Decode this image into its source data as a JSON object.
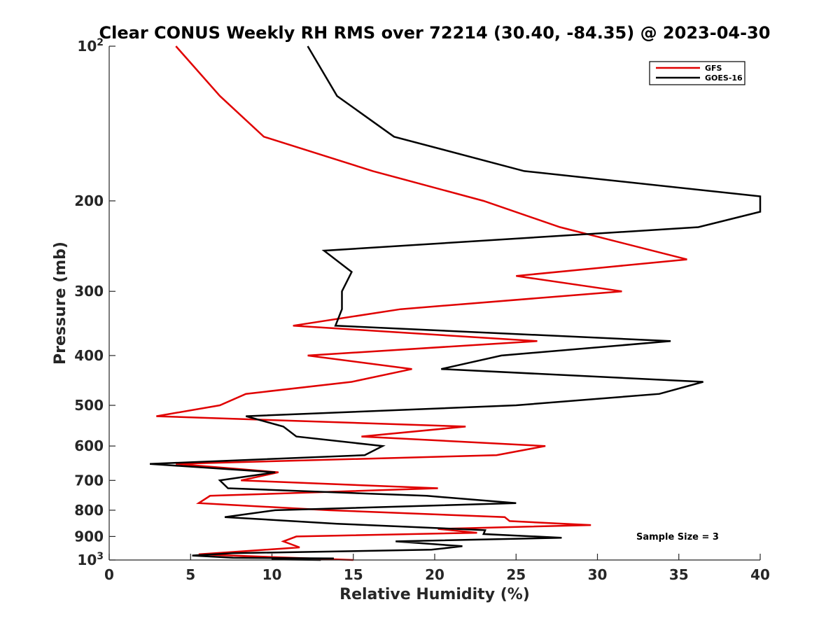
{
  "chart_data": {
    "type": "line",
    "title": "Clear CONUS Weekly RH RMS over 72214 (30.40, -84.35) @ 2023-04-30",
    "xlabel": "Relative Humidity (%)",
    "ylabel": "Pressure (mb)",
    "xlim": [
      0,
      40
    ],
    "ylim": [
      100,
      1000
    ],
    "yscale": "log",
    "yreversed": true,
    "x_ticks": [
      {
        "value": 0,
        "label": "0"
      },
      {
        "value": 5,
        "label": "5"
      },
      {
        "value": 10,
        "label": "10"
      },
      {
        "value": 15,
        "label": "15"
      },
      {
        "value": 20,
        "label": "20"
      },
      {
        "value": 25,
        "label": "25"
      },
      {
        "value": 30,
        "label": "30"
      },
      {
        "value": 35,
        "label": "35"
      },
      {
        "value": 40,
        "label": "40"
      }
    ],
    "y_ticks": [
      {
        "value": 100,
        "base": "10",
        "exp": "2"
      },
      {
        "value": 200,
        "label": "200"
      },
      {
        "value": 300,
        "label": "300"
      },
      {
        "value": 400,
        "label": "400"
      },
      {
        "value": 500,
        "label": "500"
      },
      {
        "value": 600,
        "label": "600"
      },
      {
        "value": 700,
        "label": "700"
      },
      {
        "value": 800,
        "label": "800"
      },
      {
        "value": 900,
        "label": "900"
      },
      {
        "value": 1000,
        "base": "10",
        "exp": "3"
      }
    ],
    "legend_position": "top-right",
    "series": [
      {
        "name": "GFS",
        "color": "#e00000",
        "points": [
          [
            4.1,
            100
          ],
          [
            6.8,
            125
          ],
          [
            9.5,
            150
          ],
          [
            16.2,
            175
          ],
          [
            23,
            200
          ],
          [
            27.7,
            225
          ],
          [
            35.5,
            260
          ],
          [
            25,
            280
          ],
          [
            31.5,
            300
          ],
          [
            17.9,
            325
          ],
          [
            11.3,
            350
          ],
          [
            26.3,
            375
          ],
          [
            12.2,
            400
          ],
          [
            18.6,
            425
          ],
          [
            14.9,
            450
          ],
          [
            8.4,
            475
          ],
          [
            6.8,
            500
          ],
          [
            2.9,
            525
          ],
          [
            21.9,
            550
          ],
          [
            15.5,
            575
          ],
          [
            26.8,
            600
          ],
          [
            23.8,
            625
          ],
          [
            4.1,
            650
          ],
          [
            10.4,
            675
          ],
          [
            8.1,
            700
          ],
          [
            20.2,
            725
          ],
          [
            6.2,
            750
          ],
          [
            5.5,
            775
          ],
          [
            13.5,
            800
          ],
          [
            24.3,
            825
          ],
          [
            24.6,
            840
          ],
          [
            29.6,
            855
          ],
          [
            20.2,
            870
          ],
          [
            22.6,
            885
          ],
          [
            11.5,
            900
          ],
          [
            10.7,
            920
          ],
          [
            11.7,
            945
          ],
          [
            5.5,
            975
          ],
          [
            15,
            1000
          ]
        ]
      },
      {
        "name": "GOES-16",
        "color": "#000000",
        "points": [
          [
            12.2,
            100
          ],
          [
            14,
            125
          ],
          [
            17.5,
            150
          ],
          [
            25.5,
            175
          ],
          [
            40,
            196
          ],
          [
            40,
            210
          ],
          [
            36.2,
            225
          ],
          [
            13.2,
            250
          ],
          [
            14.9,
            275
          ],
          [
            14.3,
            300
          ],
          [
            14.3,
            325
          ],
          [
            13.9,
            350
          ],
          [
            34.5,
            375
          ],
          [
            24.1,
            400
          ],
          [
            20.4,
            425
          ],
          [
            36.5,
            450
          ],
          [
            33.8,
            475
          ],
          [
            25,
            500
          ],
          [
            8.4,
            525
          ],
          [
            10.7,
            550
          ],
          [
            11.5,
            575
          ],
          [
            16.8,
            600
          ],
          [
            15.7,
            625
          ],
          [
            2.5,
            650
          ],
          [
            10.2,
            675
          ],
          [
            6.8,
            700
          ],
          [
            7.3,
            725
          ],
          [
            19.5,
            750
          ],
          [
            25,
            775
          ],
          [
            10.2,
            800
          ],
          [
            7.1,
            825
          ],
          [
            14,
            850
          ],
          [
            23.1,
            875
          ],
          [
            23,
            890
          ],
          [
            27.8,
            905
          ],
          [
            17.6,
            920
          ],
          [
            21.7,
            940
          ],
          [
            19.8,
            955
          ],
          [
            7.6,
            970
          ],
          [
            5.1,
            980
          ],
          [
            7.6,
            990
          ],
          [
            13.8,
            993
          ],
          [
            10,
            997
          ],
          [
            13,
            1000
          ]
        ]
      }
    ],
    "annotation": "Sample Size = 3"
  }
}
